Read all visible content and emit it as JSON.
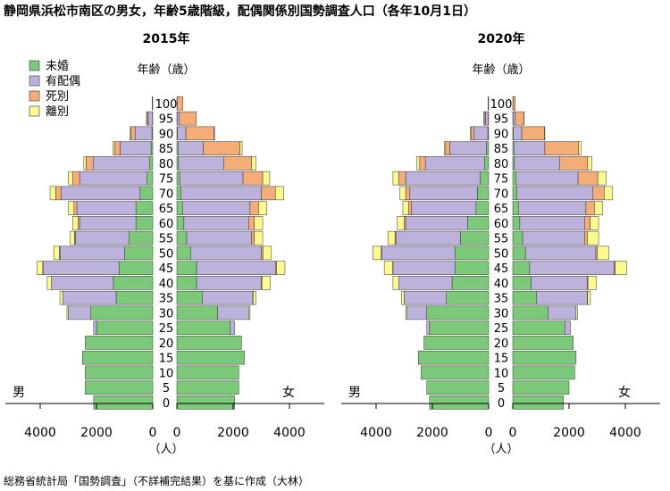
{
  "title": "静岡県浜松市南区の男女，年齢5歳階級，配偶関係別国勢調査人口（各年10月1日）",
  "source": "総務省統計局「国勢調査」（不詳補完結果）を基に作成（大林）",
  "age_axis_label": "年齢（歳）",
  "unit_label": "（人）",
  "male_label": "男",
  "female_label": "女",
  "colors": {
    "未婚": "#7dc97a",
    "有配偶": "#bcb2dc",
    "死別": "#f5ad78",
    "離別": "#fdfa8f",
    "outline": "#333333"
  },
  "legend": [
    "未婚",
    "有配偶",
    "死別",
    "離別"
  ],
  "chart_data": [
    {
      "type": "bar",
      "title": "2015年",
      "ages": [
        "0",
        "5",
        "10",
        "15",
        "20",
        "25",
        "30",
        "35",
        "40",
        "45",
        "50",
        "55",
        "60",
        "65",
        "70",
        "75",
        "80",
        "85",
        "90",
        "95",
        "100"
      ],
      "x_ticks": [
        4000,
        2000,
        0,
        2000,
        4000
      ],
      "xlim": [
        0,
        4600
      ],
      "male": {
        "未婚": [
          2100,
          2400,
          2400,
          2500,
          2400,
          2000,
          2200,
          1300,
          1400,
          1200,
          1000,
          850,
          600,
          600,
          450,
          200,
          120,
          60,
          30,
          10,
          0
        ],
        "有配偶": [
          0,
          0,
          0,
          0,
          0,
          100,
          800,
          1900,
          2200,
          2700,
          2300,
          1900,
          2000,
          2100,
          2800,
          2400,
          2000,
          1100,
          600,
          150,
          10
        ],
        "死別": [
          0,
          0,
          0,
          0,
          0,
          0,
          0,
          0,
          0,
          10,
          20,
          30,
          50,
          100,
          200,
          250,
          250,
          200,
          150,
          50,
          10
        ],
        "離別": [
          0,
          0,
          0,
          0,
          0,
          0,
          50,
          100,
          150,
          200,
          200,
          150,
          200,
          200,
          200,
          150,
          80,
          50,
          20,
          10,
          0
        ]
      },
      "female": {
        "未婚": [
          2050,
          2200,
          2200,
          2400,
          2300,
          1900,
          1450,
          900,
          700,
          700,
          500,
          350,
          250,
          200,
          150,
          100,
          60,
          40,
          20,
          10,
          0
        ],
        "有配偶": [
          0,
          0,
          0,
          0,
          0,
          150,
          1100,
          1800,
          2300,
          2800,
          2500,
          2300,
          2300,
          2400,
          2850,
          2250,
          1600,
          900,
          300,
          80,
          10
        ],
        "死別": [
          0,
          0,
          0,
          0,
          0,
          0,
          0,
          10,
          20,
          40,
          60,
          100,
          200,
          300,
          500,
          700,
          1000,
          1300,
          1000,
          600,
          200
        ],
        "離別": [
          0,
          0,
          0,
          0,
          0,
          0,
          50,
          100,
          300,
          300,
          300,
          300,
          300,
          300,
          300,
          250,
          150,
          80,
          20,
          0,
          0
        ]
      }
    },
    {
      "type": "bar",
      "title": "2020年",
      "ages": [
        "0",
        "5",
        "10",
        "15",
        "20",
        "25",
        "30",
        "35",
        "40",
        "45",
        "50",
        "55",
        "60",
        "65",
        "70",
        "75",
        "80",
        "85",
        "90",
        "95",
        "100"
      ],
      "x_ticks": [
        4000,
        2000,
        0,
        2000,
        4000
      ],
      "xlim": [
        0,
        4600
      ],
      "male": {
        "未婚": [
          2100,
          2200,
          2400,
          2500,
          2300,
          2100,
          2200,
          1500,
          1300,
          1200,
          1200,
          1000,
          750,
          450,
          400,
          300,
          150,
          80,
          30,
          10,
          0
        ],
        "有配偶": [
          0,
          0,
          0,
          0,
          0,
          100,
          700,
          1500,
          1900,
          2200,
          2600,
          2300,
          2200,
          2300,
          2400,
          2650,
          2100,
          1300,
          500,
          100,
          10
        ],
        "死別": [
          0,
          0,
          0,
          0,
          0,
          0,
          0,
          0,
          0,
          10,
          20,
          30,
          50,
          100,
          150,
          250,
          200,
          150,
          100,
          50,
          10
        ],
        "離別": [
          0,
          0,
          0,
          0,
          0,
          0,
          50,
          100,
          200,
          300,
          300,
          250,
          250,
          200,
          200,
          200,
          100,
          50,
          20,
          10,
          0
        ]
      },
      "female": {
        "未婚": [
          1800,
          2000,
          2200,
          2250,
          2150,
          1850,
          1250,
          850,
          650,
          600,
          450,
          350,
          250,
          200,
          150,
          120,
          60,
          40,
          20,
          10,
          0
        ],
        "有配偶": [
          0,
          0,
          0,
          0,
          0,
          200,
          1000,
          1800,
          2000,
          3000,
          2500,
          2200,
          2300,
          2400,
          2700,
          2200,
          1600,
          1100,
          300,
          80,
          10
        ],
        "死別": [
          0,
          0,
          0,
          0,
          0,
          0,
          0,
          10,
          20,
          40,
          60,
          100,
          200,
          300,
          400,
          700,
          1000,
          1200,
          800,
          300,
          80
        ],
        "離別": [
          0,
          0,
          0,
          0,
          0,
          0,
          50,
          100,
          300,
          400,
          400,
          400,
          300,
          300,
          300,
          300,
          150,
          80,
          20,
          10,
          0
        ]
      }
    }
  ]
}
